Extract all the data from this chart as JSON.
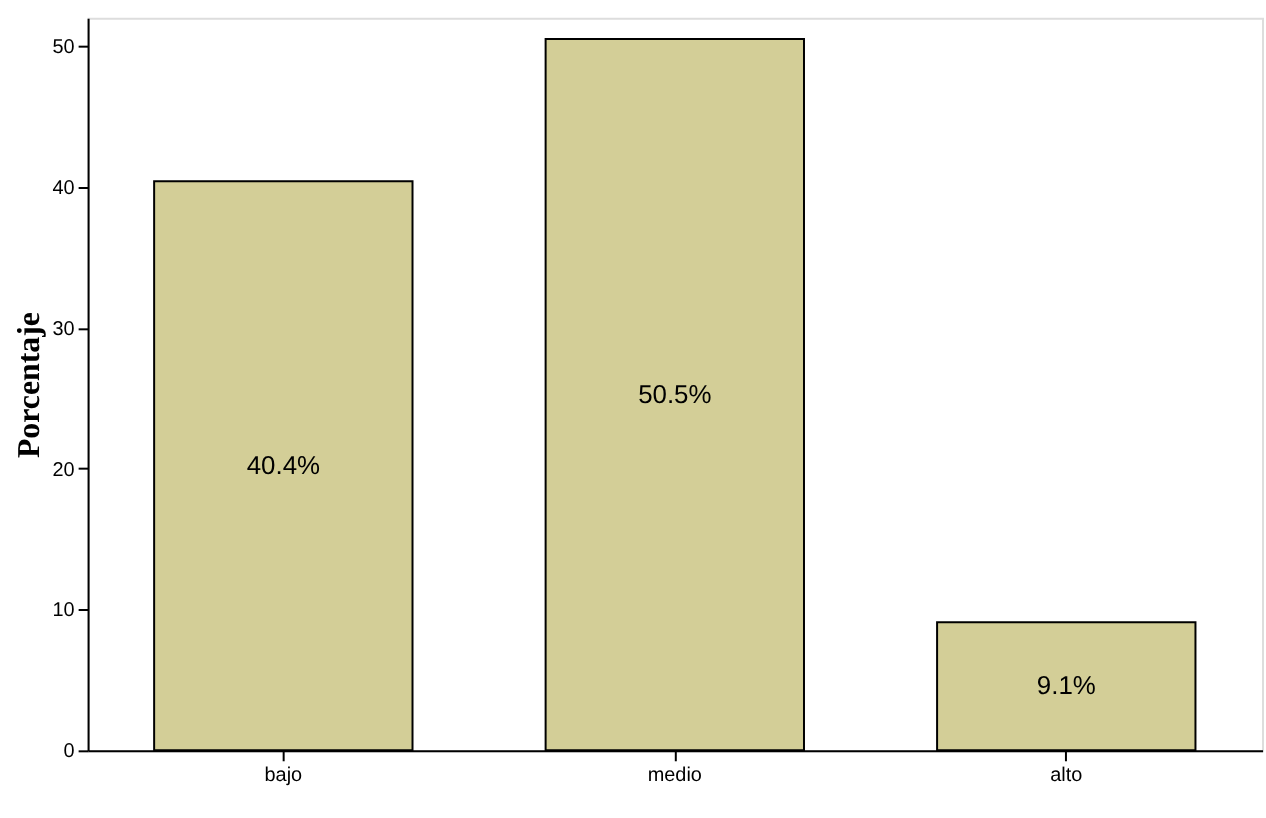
{
  "chart_data": {
    "type": "bar",
    "ylabel": "Porcentaje",
    "categories": [
      "bajo",
      "medio",
      "alto"
    ],
    "values": [
      40.4,
      50.5,
      9.1
    ],
    "color": "#d3ce97",
    "value_labels": [
      "40.4%",
      "50.5%",
      "9.1%"
    ],
    "ylim": [
      0,
      52
    ],
    "yticks": [
      0,
      10,
      20,
      30,
      40,
      50
    ],
    "grid": false
  }
}
